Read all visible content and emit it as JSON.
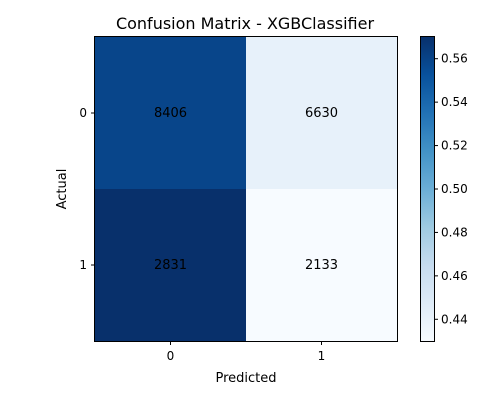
{
  "chart_data": {
    "type": "heatmap",
    "title": "Confusion Matrix - XGBClassifier",
    "xlabel": "Predicted",
    "ylabel": "Actual",
    "x_ticks": [
      "0",
      "1"
    ],
    "y_ticks": [
      "0",
      "1"
    ],
    "matrix": [
      [
        8406,
        6630
      ],
      [
        2831,
        2133
      ]
    ],
    "normalized_matrix": [
      [
        0.559,
        0.441
      ],
      [
        0.57,
        0.43
      ]
    ],
    "colorbar": {
      "colormap": "Blues",
      "range": [
        0.43,
        0.57
      ],
      "ticks": [
        "0.44",
        "0.46",
        "0.48",
        "0.50",
        "0.52",
        "0.54",
        "0.56"
      ],
      "tick_values": [
        0.44,
        0.46,
        0.48,
        0.5,
        0.52,
        0.54,
        0.56
      ]
    },
    "grid": false
  }
}
